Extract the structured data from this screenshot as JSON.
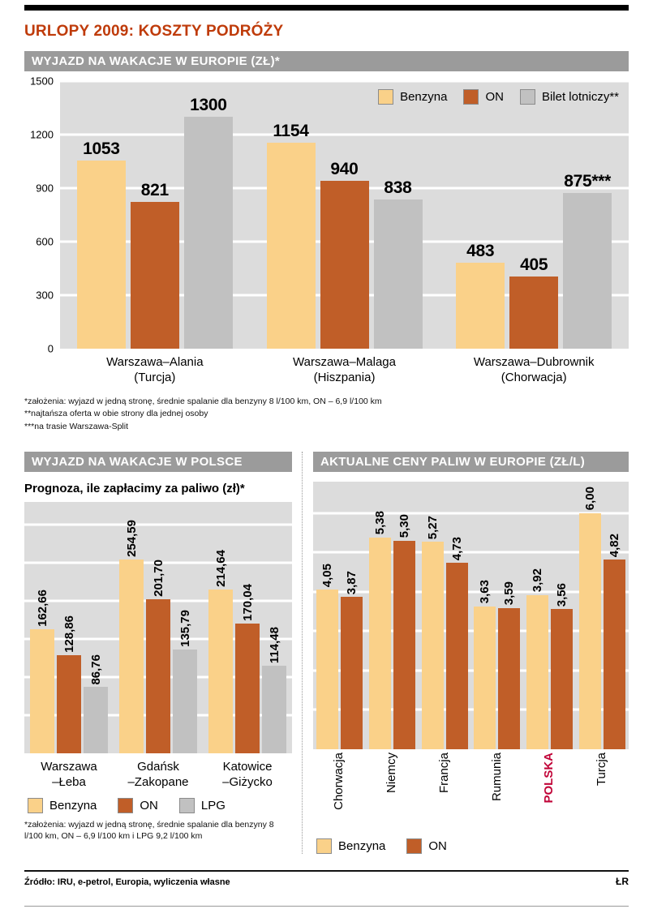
{
  "page": {
    "title": "URLOPY 2009: KOSZTY PODRÓŻY",
    "source": "Źródło: IRU, e-petrol, Europia, wyliczenia własne",
    "credit": "ŁR"
  },
  "colors": {
    "benzyna": "#FAD189",
    "on": "#C05E28",
    "gray": "#C1C1C1",
    "plot_bg": "#DCDCDC",
    "header_bg": "#9B9B9B",
    "title_red": "#BF3B0A",
    "highlight_red": "#C10438"
  },
  "chart_data": [
    {
      "id": "europe-trips",
      "type": "bar",
      "title": "WYJAZD NA WAKACJE W EUROPIE (ZŁ)*",
      "categories": [
        [
          "Warszawa–Alania",
          "(Turcja)"
        ],
        [
          "Warszawa–Malaga",
          "(Hiszpania)"
        ],
        [
          "Warszawa–Dubrownik",
          "(Chorwacja)"
        ]
      ],
      "series": [
        {
          "name": "Benzyna",
          "color_key": "benzyna",
          "values": [
            1053,
            1154,
            483
          ],
          "labels": [
            "1053",
            "1154",
            "483"
          ]
        },
        {
          "name": "ON",
          "color_key": "on",
          "values": [
            821,
            940,
            405
          ],
          "labels": [
            "821",
            "940",
            "405"
          ]
        },
        {
          "name": "Bilet lotniczy**",
          "color_key": "gray",
          "values": [
            1300,
            838,
            875
          ],
          "labels": [
            "1300",
            "838",
            "875***"
          ]
        }
      ],
      "ylim": [
        0,
        1500
      ],
      "yticks": [
        0,
        300,
        600,
        900,
        1200,
        1500
      ],
      "grid": true,
      "legend_position": "top-right",
      "footnotes": [
        "*założenia: wyjazd w jedną stronę, średnie spalanie dla benzyny 8 l/100 km, ON – 6,9 l/100 km",
        "**najtańsza oferta w obie strony dla jednej osoby",
        "***na trasie Warszawa-Split"
      ]
    },
    {
      "id": "poland-trips",
      "type": "bar",
      "title": "WYJAZD NA WAKACJE W POLSCE",
      "subtitle": "Prognoza, ile zapłacimy za paliwo (zł)*",
      "categories": [
        [
          "Warszawa",
          "–Łeba"
        ],
        [
          "Gdańsk",
          "–Zakopane"
        ],
        [
          "Katowice",
          "–Giżycko"
        ]
      ],
      "series": [
        {
          "name": "Benzyna",
          "color_key": "benzyna",
          "values": [
            162.66,
            254.59,
            214.64
          ],
          "labels": [
            "162,66",
            "254,59",
            "214,64"
          ]
        },
        {
          "name": "ON",
          "color_key": "on",
          "values": [
            128.86,
            201.7,
            170.04
          ],
          "labels": [
            "128,86",
            "201,70",
            "170,04"
          ]
        },
        {
          "name": "LPG",
          "color_key": "gray",
          "values": [
            86.76,
            135.79,
            114.48
          ],
          "labels": [
            "86,76",
            "135,79",
            "114,48"
          ]
        }
      ],
      "ylim": [
        0,
        330
      ],
      "yticks": [
        50,
        100,
        150,
        200,
        250,
        300
      ],
      "grid": true,
      "legend_position": "bottom",
      "value_label_style": "rotated",
      "footnotes": [
        "*założenia: wyjazd w jedną stronę, średnie spalanie dla benzyny 8 l/100 km, ON – 6,9 l/100 km i LPG 9,2 l/100 km"
      ]
    },
    {
      "id": "fuel-prices",
      "type": "bar",
      "title": "AKTUALNE CENY PALIW W EUROPIE (ZŁ/L)",
      "categories": [
        "Chorwacja",
        "Niemcy",
        "Francja",
        "Rumunia",
        "POLSKA",
        "Turcja"
      ],
      "highlight_index": 4,
      "series": [
        {
          "name": "Benzyna",
          "color_key": "benzyna",
          "values": [
            4.05,
            5.38,
            5.27,
            3.63,
            3.92,
            6.0
          ],
          "labels": [
            "4,05",
            "5,38",
            "5,27",
            "3,63",
            "3,92",
            "6,00"
          ]
        },
        {
          "name": "ON",
          "color_key": "on",
          "values": [
            3.87,
            5.3,
            4.73,
            3.59,
            3.56,
            4.82
          ],
          "labels": [
            "3,87",
            "5,30",
            "4,73",
            "3,59",
            "3,56",
            "4,82"
          ]
        }
      ],
      "ylim": [
        0,
        6.8
      ],
      "yticks": [
        1,
        2,
        3,
        4,
        5,
        6
      ],
      "grid": true,
      "legend_position": "bottom",
      "value_label_style": "rotated",
      "category_label_style": "rotated"
    }
  ]
}
